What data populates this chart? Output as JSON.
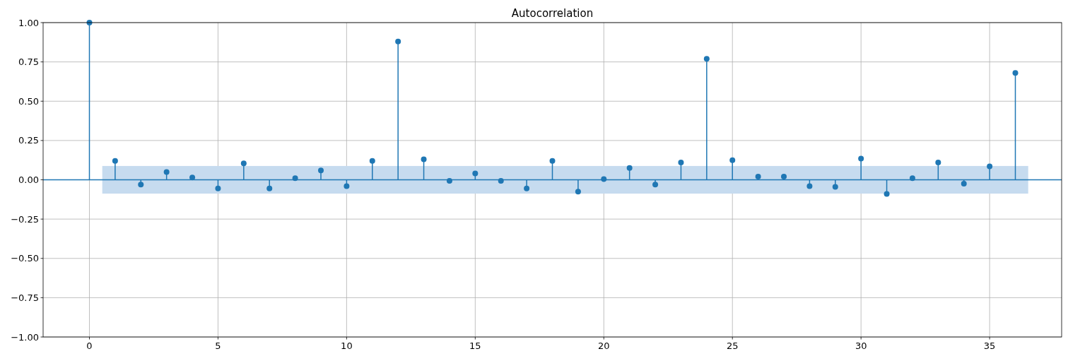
{
  "chart_data": {
    "type": "lollipop",
    "title": "Autocorrelation",
    "x": [
      0,
      1,
      2,
      3,
      4,
      5,
      6,
      7,
      8,
      9,
      10,
      11,
      12,
      13,
      14,
      15,
      16,
      17,
      18,
      19,
      20,
      21,
      22,
      23,
      24,
      25,
      26,
      27,
      28,
      29,
      30,
      31,
      32,
      33,
      34,
      35,
      36
    ],
    "values": [
      1.0,
      0.12,
      -0.03,
      0.05,
      0.015,
      -0.055,
      0.105,
      -0.055,
      0.01,
      0.06,
      -0.04,
      0.12,
      0.88,
      0.13,
      -0.007,
      0.04,
      -0.007,
      -0.055,
      0.12,
      -0.075,
      0.005,
      0.075,
      -0.03,
      0.11,
      0.77,
      0.125,
      0.02,
      0.02,
      -0.04,
      -0.045,
      0.135,
      -0.09,
      0.01,
      0.11,
      -0.025,
      0.085,
      0.68
    ],
    "color": "#1f77b4",
    "marker": "circle",
    "xlim": [
      -1.8,
      37.8
    ],
    "xticks": [
      0,
      5,
      10,
      15,
      20,
      25,
      30,
      35
    ],
    "ylim": [
      -1,
      1
    ],
    "yticks": [
      {
        "value": -1,
        "label": "−1.00"
      },
      {
        "value": -0.75,
        "label": "−0.75"
      },
      {
        "value": -0.5,
        "label": "−0.50"
      },
      {
        "value": -0.25,
        "label": "−0.25"
      },
      {
        "value": 0,
        "label": "0.00"
      },
      {
        "value": 0.25,
        "label": "0.25"
      },
      {
        "value": 0.5,
        "label": "0.50"
      },
      {
        "value": 0.75,
        "label": "0.75"
      },
      {
        "value": 1,
        "label": "1.00"
      }
    ],
    "grid": true,
    "ref_lines": [
      {
        "axis": "y",
        "value": 0,
        "color": "#1f77b4"
      }
    ],
    "bands": [
      {
        "axis": "y",
        "from": -0.088,
        "to": 0.088,
        "color": "#c6dbef"
      }
    ]
  }
}
